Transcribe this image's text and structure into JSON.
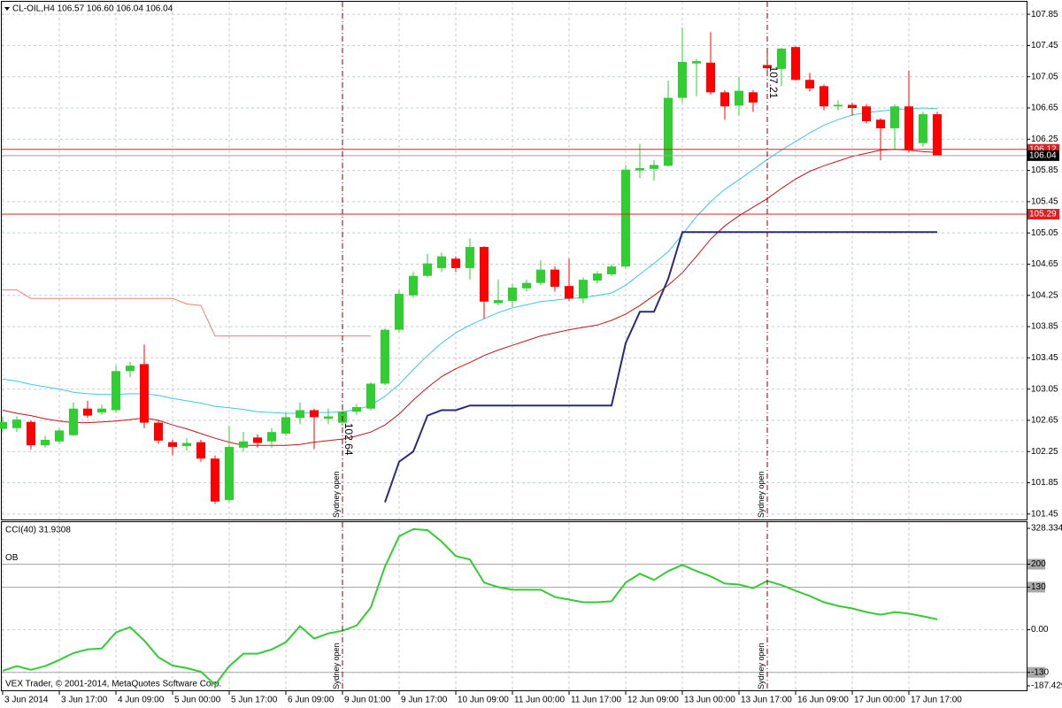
{
  "chart_data": [
    {
      "type": "candlestick",
      "title": "CL-OIL,H4 106.57 106.60 106.04 106.04",
      "categories": [
        "3 Jun 2014",
        null,
        null,
        null,
        "3 Jun 17:00",
        null,
        null,
        null,
        "4 Jun 09:00",
        null,
        null,
        null,
        "5 Jun 00:00",
        null,
        null,
        null,
        "5 Jun 17:00",
        null,
        null,
        null,
        "6 Jun 09:00",
        null,
        null,
        null,
        "9 Jun 01:00",
        null,
        null,
        null,
        "9 Jun 17:00",
        null,
        null,
        null,
        "10 Jun 09:00",
        null,
        null,
        null,
        "11 Jun 00:00",
        null,
        null,
        null,
        "11 Jun 17:00",
        null,
        null,
        null,
        "12 Jun 09:00",
        null,
        null,
        null,
        "13 Jun 00:00",
        null,
        null,
        null,
        "13 Jun 17:00",
        null,
        null,
        null,
        "16 Jun 09:00",
        null,
        null,
        null,
        "17 Jun 00:00",
        null,
        null,
        null,
        "17 Jun 17:00",
        null,
        null
      ],
      "open": [
        102.54,
        102.55,
        102.63,
        102.33,
        102.38,
        102.46,
        102.8,
        102.75,
        102.78,
        103.28,
        103.37,
        102.62,
        102.37,
        102.32,
        102.37,
        102.16,
        101.63,
        102.3,
        102.43,
        102.38,
        102.48,
        102.68,
        102.78,
        102.67,
        102.62,
        102.76,
        102.8,
        103.12,
        103.81,
        104.25,
        104.5,
        104.6,
        104.72,
        104.6,
        104.87,
        104.15,
        104.18,
        104.34,
        104.41,
        104.58,
        104.37,
        104.21,
        104.44,
        104.52,
        104.62,
        105.85,
        105.87,
        105.91,
        106.78,
        107.22,
        107.23,
        106.85,
        106.68,
        106.85,
        107.2,
        107.15,
        107.43,
        107.01,
        106.93,
        106.67,
        106.69,
        106.67,
        106.5,
        106.39,
        106.67,
        106.2,
        106.57
      ],
      "high": [
        102.7,
        102.7,
        102.65,
        102.45,
        102.55,
        102.88,
        102.9,
        102.85,
        103.35,
        103.4,
        103.62,
        102.65,
        102.4,
        102.42,
        102.4,
        102.2,
        102.58,
        102.5,
        102.47,
        102.55,
        102.75,
        102.88,
        102.8,
        102.8,
        102.82,
        102.86,
        103.14,
        103.83,
        104.32,
        104.55,
        104.78,
        104.8,
        104.75,
        104.98,
        104.88,
        104.45,
        104.4,
        104.45,
        104.7,
        104.62,
        104.72,
        104.48,
        104.56,
        104.65,
        105.92,
        106.19,
        105.98,
        107.0,
        107.68,
        107.28,
        107.62,
        106.88,
        107.05,
        106.88,
        107.4,
        107.42,
        107.44,
        107.1,
        106.95,
        106.75,
        106.72,
        106.7,
        106.52,
        106.7,
        107.13,
        106.6,
        106.6
      ],
      "low": [
        102.5,
        102.5,
        102.28,
        102.3,
        102.35,
        102.45,
        102.68,
        102.72,
        102.75,
        103.2,
        102.55,
        102.35,
        102.2,
        102.26,
        102.12,
        101.58,
        101.6,
        102.25,
        102.3,
        102.3,
        102.45,
        102.6,
        102.28,
        102.6,
        102.58,
        102.72,
        102.78,
        103.1,
        103.78,
        104.22,
        104.48,
        104.55,
        104.55,
        104.45,
        103.95,
        104.12,
        104.1,
        104.3,
        104.38,
        104.3,
        104.18,
        104.15,
        104.4,
        104.5,
        104.6,
        105.75,
        105.72,
        105.9,
        106.72,
        106.8,
        106.82,
        106.5,
        106.55,
        106.6,
        107.1,
        106.93,
        107.0,
        106.86,
        106.62,
        106.62,
        106.55,
        106.45,
        105.98,
        106.12,
        106.08,
        106.15,
        106.04
      ],
      "close": [
        102.63,
        102.66,
        102.33,
        102.4,
        102.52,
        102.8,
        102.71,
        102.8,
        103.28,
        103.35,
        102.62,
        102.39,
        102.31,
        102.36,
        102.16,
        101.61,
        102.31,
        102.38,
        102.36,
        102.5,
        102.69,
        102.78,
        102.69,
        102.7,
        102.76,
        102.82,
        103.12,
        103.81,
        104.27,
        104.5,
        104.66,
        104.75,
        104.6,
        104.87,
        104.17,
        104.19,
        104.35,
        104.41,
        104.58,
        104.36,
        104.21,
        104.45,
        104.53,
        104.62,
        105.86,
        105.88,
        105.92,
        106.78,
        107.24,
        107.25,
        106.85,
        106.67,
        106.87,
        106.72,
        107.16,
        107.41,
        107.01,
        106.9,
        106.67,
        106.69,
        106.65,
        106.48,
        106.39,
        106.67,
        106.11,
        106.57,
        106.04
      ],
      "up_color": "#32cd32",
      "down_color": "#ff0000",
      "overlays": [
        {
          "color": "#3cc8e6",
          "values": [
            103.18,
            103.15,
            103.11,
            103.08,
            103.05,
            103.01,
            102.99,
            102.98,
            102.98,
            102.99,
            102.99,
            102.97,
            102.93,
            102.9,
            102.87,
            102.83,
            102.81,
            102.79,
            102.76,
            102.75,
            102.74,
            102.74,
            102.75,
            102.75,
            102.76,
            102.79,
            102.84,
            102.96,
            103.11,
            103.3,
            103.48,
            103.64,
            103.77,
            103.87,
            103.95,
            104.03,
            104.09,
            104.13,
            104.17,
            104.19,
            104.21,
            104.22,
            104.25,
            104.28,
            104.38,
            104.52,
            104.66,
            104.81,
            105.03,
            105.26,
            105.45,
            105.61,
            105.73,
            105.86,
            105.99,
            106.11,
            106.22,
            106.33,
            106.43,
            106.5,
            106.56,
            106.59,
            106.61,
            106.63,
            106.64,
            106.65,
            106.64
          ]
        },
        {
          "color": "#c81414",
          "values": [
            102.78,
            102.74,
            102.71,
            102.67,
            102.64,
            102.62,
            102.62,
            102.63,
            102.64,
            102.66,
            102.68,
            102.65,
            102.59,
            102.54,
            102.48,
            102.42,
            102.37,
            102.33,
            102.33,
            102.33,
            102.33,
            102.34,
            102.37,
            102.39,
            102.41,
            102.45,
            102.5,
            102.59,
            102.73,
            102.91,
            103.07,
            103.21,
            103.31,
            103.39,
            103.48,
            103.55,
            103.61,
            103.67,
            103.73,
            103.77,
            103.81,
            103.84,
            103.87,
            103.93,
            104.01,
            104.12,
            104.25,
            104.38,
            104.54,
            104.75,
            104.97,
            105.14,
            105.27,
            105.38,
            105.49,
            105.62,
            105.74,
            105.84,
            105.91,
            105.97,
            106.03,
            106.07,
            106.11,
            106.12,
            106.11,
            106.09,
            106.08
          ]
        },
        {
          "color": "#f08070",
          "values": [
            104.32,
            104.32,
            104.21,
            104.21,
            104.21,
            104.21,
            104.21,
            104.21,
            104.21,
            104.21,
            104.21,
            104.21,
            104.21,
            104.14,
            104.12,
            103.73,
            103.73,
            103.73,
            103.73,
            103.73,
            103.73,
            103.73,
            103.73,
            103.73,
            103.73,
            103.73,
            103.73,
            null,
            null,
            null,
            null,
            null,
            null,
            null,
            null,
            null,
            null,
            null,
            null,
            null,
            null,
            null,
            null,
            null,
            null,
            null,
            null,
            null,
            null,
            null,
            null,
            null,
            null,
            null,
            null,
            null,
            null,
            null,
            null,
            null,
            null,
            null,
            null,
            null,
            null,
            null,
            null
          ]
        },
        {
          "color": "#2b2b7a",
          "values": [
            null,
            null,
            null,
            null,
            null,
            null,
            null,
            null,
            null,
            null,
            null,
            null,
            null,
            null,
            null,
            null,
            null,
            null,
            null,
            null,
            null,
            null,
            null,
            null,
            null,
            null,
            null,
            101.6,
            102.12,
            102.25,
            102.71,
            102.78,
            102.78,
            102.84,
            102.84,
            102.84,
            102.84,
            102.84,
            102.84,
            102.84,
            102.84,
            102.84,
            102.84,
            102.84,
            103.64,
            104.04,
            104.04,
            104.46,
            105.06,
            105.06,
            105.06,
            105.06,
            105.06,
            105.06,
            105.06,
            105.06,
            105.06,
            105.06,
            105.06,
            105.06,
            105.06,
            105.06,
            105.06,
            105.06,
            105.06,
            105.06,
            105.06
          ]
        }
      ],
      "hlines": [
        {
          "value": 105.29,
          "color": "#e02020",
          "label_color": "#e02020"
        },
        {
          "value": 106.12,
          "color": "#e02020",
          "label_color": "#e02020"
        },
        {
          "value": 106.04,
          "color": "#a0a0a0",
          "label_color": "#000000"
        }
      ],
      "events": [
        {
          "at": 24,
          "label": "Sydney open"
        },
        {
          "at": 54,
          "label": "Sydney open"
        }
      ],
      "annotations": [
        {
          "at": 24,
          "value": 102.64
        },
        {
          "at": 54,
          "value": 107.21
        }
      ],
      "ylim": [
        101.38,
        108.01
      ],
      "yticks": [
        101.45,
        101.85,
        102.25,
        102.65,
        103.05,
        103.45,
        103.85,
        104.25,
        104.65,
        105.05,
        105.45,
        105.85,
        106.25,
        106.65,
        107.05,
        107.45,
        107.85
      ],
      "grid": true
    },
    {
      "type": "line",
      "title": "CCI(40) 31.9308",
      "series": [
        {
          "color": "#32cd32",
          "values": [
            -125,
            -111,
            -122,
            -111,
            -92,
            -71,
            -60,
            -57,
            -8,
            8,
            -33,
            -84,
            -109,
            -117,
            -128,
            -168,
            -111,
            -73,
            -73,
            -60,
            -38,
            11,
            -27,
            -11,
            -3,
            13,
            68,
            193,
            285,
            307,
            304,
            269,
            225,
            214,
            144,
            130,
            122,
            122,
            122,
            100,
            92,
            84,
            84,
            87,
            144,
            171,
            152,
            179,
            198,
            179,
            163,
            141,
            138,
            127,
            149,
            136,
            119,
            103,
            84,
            73,
            65,
            54,
            46,
            54,
            49,
            41,
            31.93
          ]
        }
      ],
      "levels": [
        200,
        130,
        -130
      ],
      "level_label": "OB",
      "ylim": [
        -187.429,
        328.334
      ],
      "yticks": [
        328.334,
        200,
        130,
        {
          "value": 0,
          "label": "0.00"
        },
        -130,
        -187.429
      ],
      "grid": true
    }
  ],
  "footer": "VEX Trader, © 2001-2014, MetaQuotes Software Corp."
}
